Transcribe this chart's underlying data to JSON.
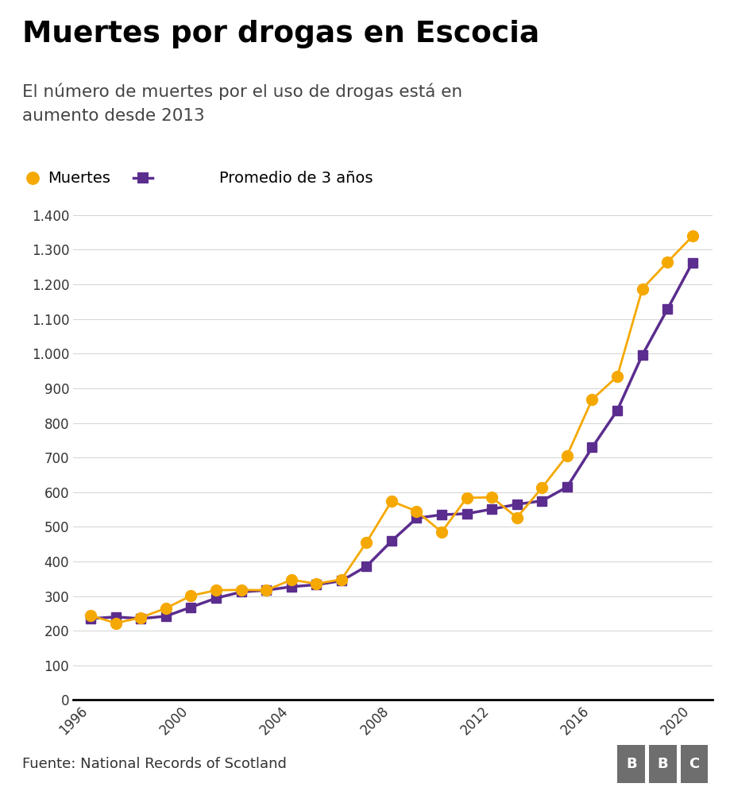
{
  "title": "Muertes por drogas en Escocia",
  "subtitle": "El número de muertes por el uso de drogas está en\naumento desde 2013",
  "source": "Fuente: National Records of Scotland",
  "years": [
    1996,
    1997,
    1998,
    1999,
    2000,
    2001,
    2002,
    2003,
    2004,
    2005,
    2006,
    2007,
    2008,
    2009,
    2010,
    2011,
    2012,
    2013,
    2014,
    2015,
    2016,
    2017,
    2018,
    2019,
    2020
  ],
  "muertes": [
    244,
    222,
    238,
    265,
    301,
    317,
    318,
    317,
    347,
    336,
    348,
    455,
    574,
    545,
    485,
    584,
    585,
    527,
    613,
    706,
    868,
    934,
    1187,
    1264,
    1339
  ],
  "promedio": [
    235,
    240,
    235,
    242,
    268,
    294,
    312,
    317,
    327,
    333,
    344,
    386,
    459,
    525,
    535,
    538,
    551,
    565,
    575,
    615,
    729,
    836,
    996,
    1128,
    1263
  ],
  "muertes_color": "#f5a800",
  "promedio_color": "#5b2d8e",
  "background_color": "#ffffff",
  "footer_bg": "#e8e8e8",
  "yticks": [
    0,
    100,
    200,
    300,
    400,
    500,
    600,
    700,
    800,
    900,
    1000,
    1100,
    1200,
    1300,
    1400
  ],
  "ytick_labels": [
    "0",
    "100",
    "200",
    "300",
    "400",
    "500",
    "600",
    "700",
    "800",
    "900",
    "1.000",
    "1.100",
    "1.200",
    "1.300",
    "1.400"
  ],
  "xticks": [
    1996,
    2000,
    2004,
    2008,
    2012,
    2016,
    2020
  ],
  "xlim_left": 1995.3,
  "xlim_right": 2020.8,
  "ylim_top": 1450
}
